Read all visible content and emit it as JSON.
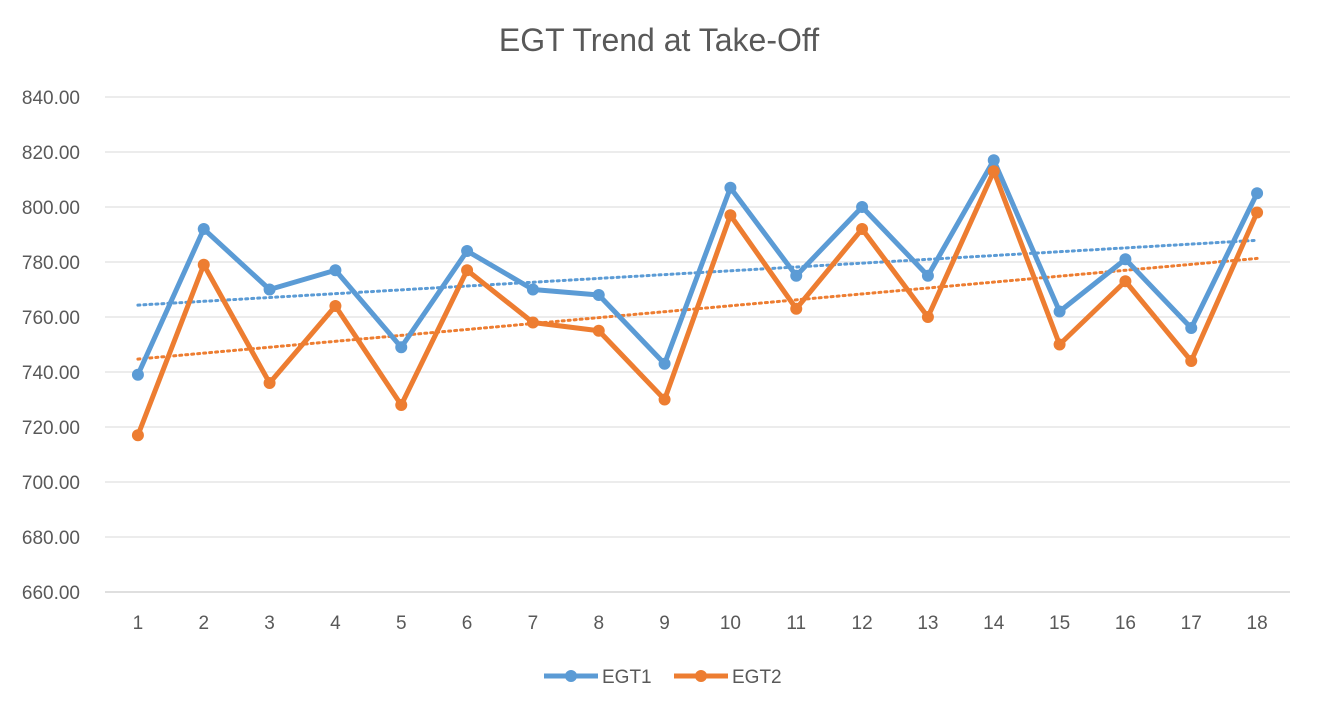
{
  "chart_data": {
    "type": "line",
    "title": "EGT Trend at Take-Off",
    "categories": [
      "1",
      "2",
      "3",
      "4",
      "5",
      "6",
      "7",
      "8",
      "9",
      "10",
      "11",
      "12",
      "13",
      "14",
      "15",
      "16",
      "17",
      "18"
    ],
    "series": [
      {
        "name": "EGT1",
        "color": "#5b9bd5",
        "values": [
          739,
          792,
          770,
          777,
          749,
          784,
          770,
          768,
          743,
          807,
          775,
          800,
          775,
          817,
          762,
          781,
          756,
          805
        ]
      },
      {
        "name": "EGT2",
        "color": "#ed7d31",
        "values": [
          717,
          779,
          736,
          764,
          728,
          777,
          758,
          755,
          730,
          797,
          763,
          792,
          760,
          813,
          750,
          773,
          744,
          798
        ]
      }
    ],
    "trendlines": [
      {
        "series": "EGT1",
        "type": "linear",
        "style": "dotted"
      },
      {
        "series": "EGT2",
        "type": "linear",
        "style": "dotted"
      }
    ],
    "yticks": [
      "660.00",
      "680.00",
      "700.00",
      "720.00",
      "740.00",
      "760.00",
      "780.00",
      "800.00",
      "820.00",
      "840.00"
    ],
    "ylim": [
      660,
      840
    ],
    "xlabel": "",
    "ylabel": "",
    "grid": true,
    "legend_position": "bottom"
  }
}
